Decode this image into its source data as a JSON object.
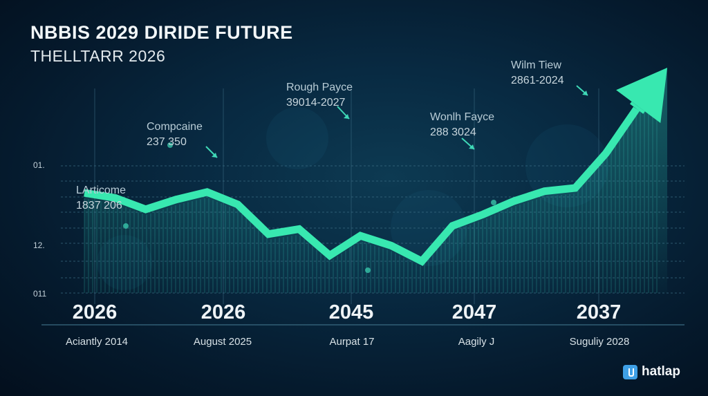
{
  "colors": {
    "background": "#061a2c",
    "accent": "#38e8b0",
    "grid": "#3d6f86",
    "text": "#eef3f6"
  },
  "header": {
    "title": "NBBIS 2029 DIRIDE FUTURE",
    "subtitle": "THELLTARR 2026"
  },
  "annotations": [
    {
      "title": "Compcaine",
      "value": "237 350"
    },
    {
      "title": "LArticome",
      "value": "1837 206"
    },
    {
      "title": "Rough Payce",
      "value": "39014-2027"
    },
    {
      "title": "Wonlh Fayce",
      "value": "288 3024"
    },
    {
      "title": "Wilm Tiew",
      "value": "2861-2024"
    }
  ],
  "brand": {
    "name": "hatlap",
    "icon": "logo-icon"
  },
  "chart_data": {
    "type": "line",
    "title": "NBBIS 2029 DIRIDE FUTURE",
    "subtitle": "THELLTARR 2026",
    "y_tick_labels": [
      "011",
      "12.",
      "01."
    ],
    "x_major_labels": [
      "2026",
      "2026",
      "2045",
      "2047",
      "2037"
    ],
    "x_minor_labels": [
      "Aciantly 2014",
      "August 2025",
      "Aurpat 17",
      "Aagily J",
      "Suguliy 2028"
    ],
    "series": [
      {
        "values": [
          0.88,
          0.82,
          0.68,
          0.8,
          0.89,
          0.74,
          0.38,
          0.44,
          0.12,
          0.36,
          0.24,
          0.05,
          0.48,
          0.62,
          0.78,
          0.9,
          0.94,
          1.36,
          1.9,
          2.4
        ]
      }
    ],
    "end_arrow": "up",
    "grid": true,
    "legend": "none"
  }
}
